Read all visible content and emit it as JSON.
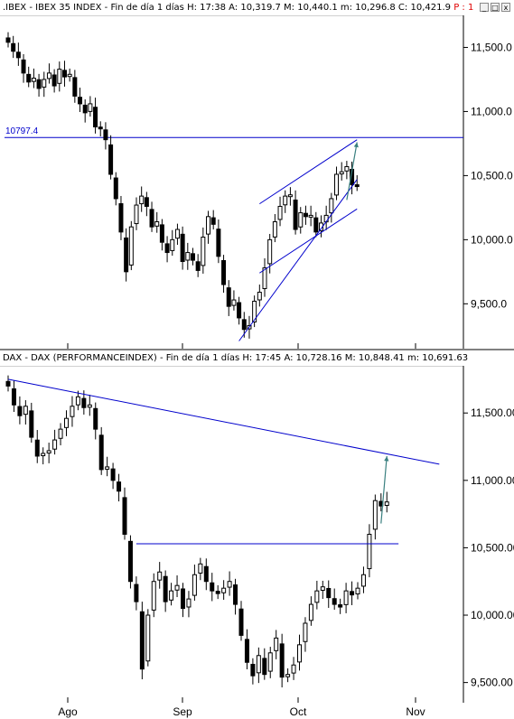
{
  "window": {
    "close": "x",
    "maximize": "□",
    "minimize": "_"
  },
  "panels": [
    {
      "title": ".IBEX - IBEX 35 INDEX - Fin de día 1 días  H: 17:38  A: 10,319.7  M: 10,440.1  m: 10,296.8  C: 10,421.9",
      "flag": "P : 1",
      "ref_label": "10797.4"
    },
    {
      "title": "DAX - DAX (PERFORMANCEINDEX) - Fin de día 1 días  H: 17:45  A: 10,728.16  M: 10,848.41  m: 10,691.63",
      "flag": ""
    }
  ],
  "x_axis_labels": [
    "Ago",
    "Sep",
    "Oct",
    "Nov"
  ],
  "chart_data": [
    {
      "type": "ohlc",
      "name": "IBEX 35 INDEX",
      "ylim": [
        9150,
        11750
      ],
      "yticks": [
        9500,
        10000,
        10500,
        11000,
        11500
      ],
      "ytick_labels": [
        "9,500.0",
        "10,000.0",
        "10,500.0",
        "11,000.0",
        "11,500.0"
      ],
      "x_months": [
        "Ago",
        "Sep",
        "Oct",
        "Nov"
      ],
      "reference_line": 10797.4,
      "close_values": [
        11540,
        11470,
        11420,
        11300,
        11230,
        11260,
        11180,
        11250,
        11300,
        11200,
        11330,
        11270,
        11290,
        11120,
        11060,
        10990,
        11060,
        10880,
        10870,
        10780,
        10510,
        10320,
        10060,
        9750,
        10100,
        10270,
        10340,
        10260,
        10100,
        10140,
        9980,
        9900,
        10000,
        10080,
        9830,
        9900,
        9840,
        9760,
        10020,
        10180,
        10120,
        9870,
        9650,
        9480,
        9530,
        9390,
        9300,
        9330,
        9520,
        9590,
        9780,
        10000,
        10140,
        10260,
        10340,
        10350,
        10080,
        10210,
        10180,
        10190,
        10060,
        10130,
        10190,
        10320,
        10510,
        10530,
        10570,
        10430,
        10420
      ],
      "trendlines": [
        {
          "from": [
            45,
            9210
          ],
          "to": [
            68,
            10470
          ],
          "color": "#0000cc"
        },
        {
          "from": [
            49,
            9740
          ],
          "to": [
            68,
            10240
          ],
          "color": "#0000cc"
        },
        {
          "from": [
            49,
            10280
          ],
          "to": [
            68,
            10780
          ],
          "color": "#0000cc"
        }
      ],
      "arrow": {
        "from": [
          66,
          10310
        ],
        "to": [
          68,
          10760
        ],
        "color": "#3a8080"
      }
    },
    {
      "type": "ohlc",
      "name": "DAX (PERFORMANCEINDEX)",
      "ylim": [
        9350,
        11850
      ],
      "yticks": [
        9500,
        10000,
        10500,
        11000,
        11500
      ],
      "ytick_labels": [
        "9,500.00",
        "10,000.00",
        "10,500.00",
        "11,000.00",
        "11,500.00"
      ],
      "x_months": [
        "Ago",
        "Sep",
        "Oct",
        "Nov"
      ],
      "close_values": [
        11700,
        11560,
        11480,
        11550,
        11320,
        11180,
        11200,
        11220,
        11300,
        11380,
        11460,
        11550,
        11620,
        11540,
        11560,
        11380,
        11080,
        11100,
        11000,
        10920,
        10600,
        10250,
        10100,
        9600,
        10000,
        10250,
        10320,
        10100,
        10180,
        10220,
        10050,
        10120,
        10300,
        10380,
        10250,
        10180,
        10160,
        10200,
        10250,
        10080,
        9850,
        9650,
        9550,
        9700,
        9560,
        9720,
        9830,
        9540,
        9560,
        9630,
        9780,
        9940,
        10080,
        10180,
        10210,
        10130,
        10080,
        10060,
        10180,
        10150,
        10200,
        10300,
        10600,
        10850,
        10810,
        10840
      ],
      "trendlines": [
        {
          "from": [
            0,
            11750
          ],
          "to": [
            74,
            11120
          ],
          "color": "#0000cc"
        },
        {
          "from": [
            22,
            10530
          ],
          "to": [
            67,
            10530
          ],
          "color": "#0000cc"
        }
      ],
      "arrow": {
        "from": [
          64,
          10680
        ],
        "to": [
          65,
          11180
        ],
        "color": "#3a8080"
      }
    }
  ]
}
